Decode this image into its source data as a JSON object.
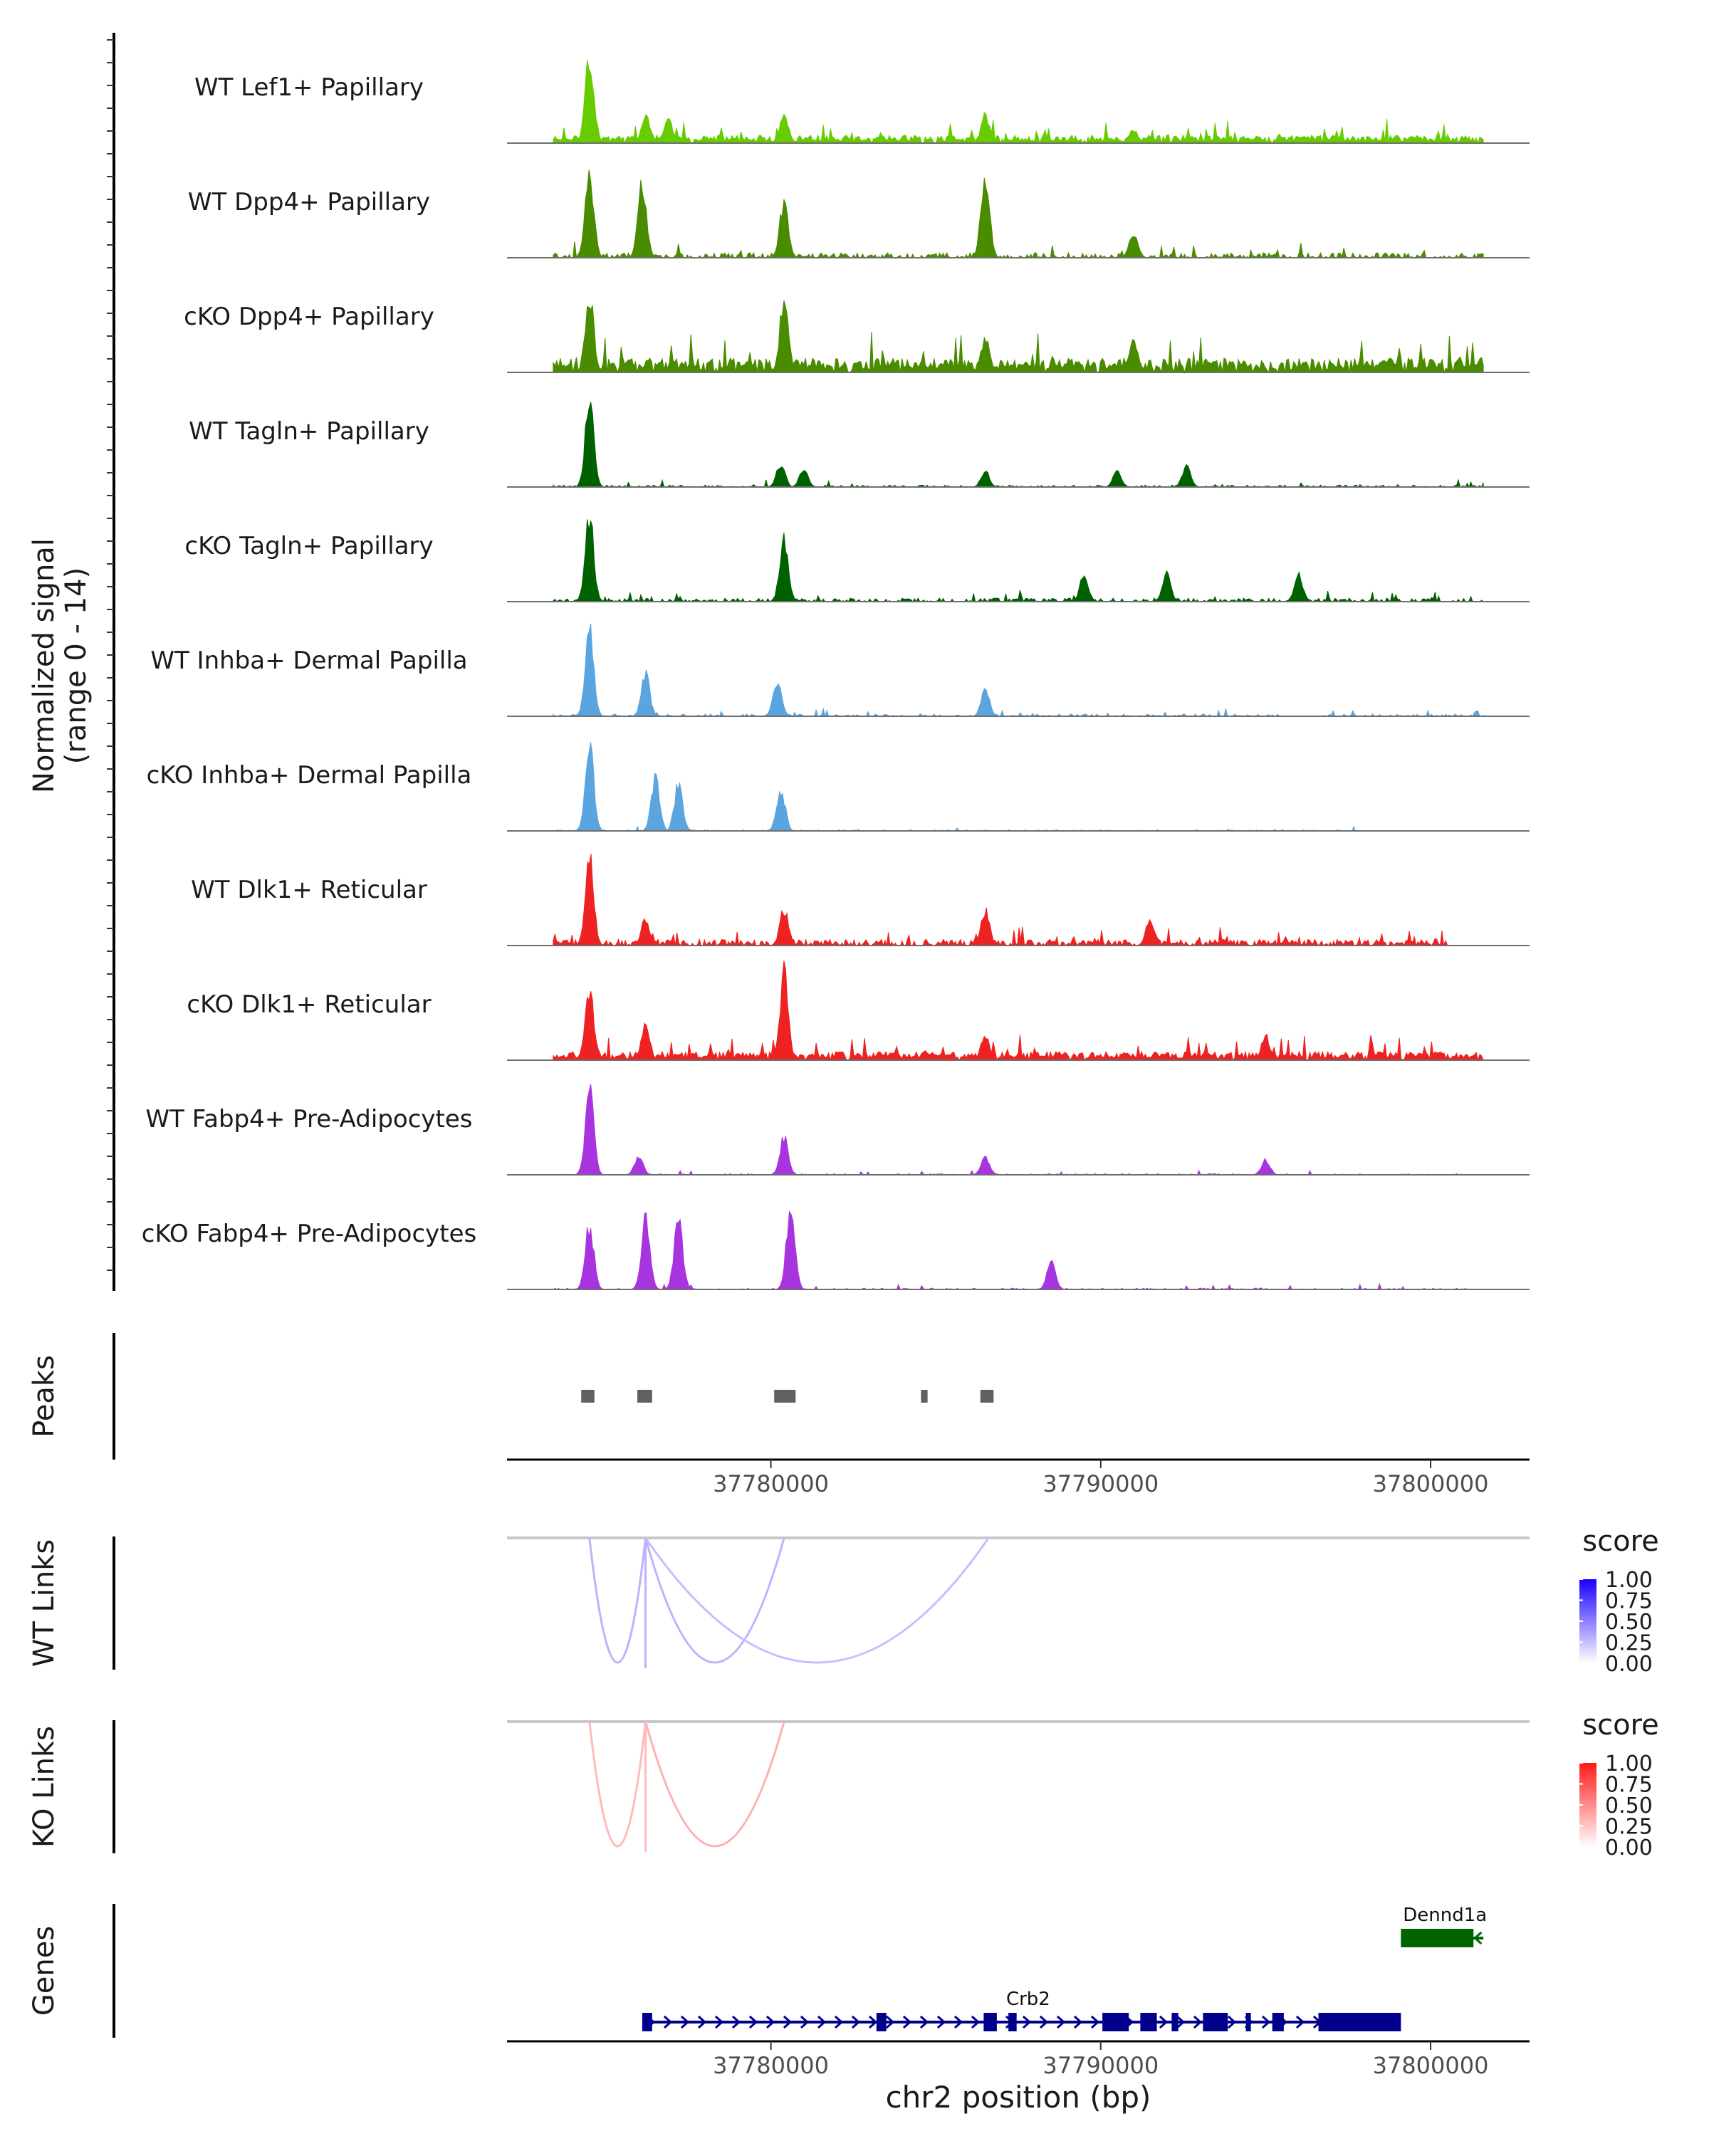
{
  "chart_data": {
    "type": "area",
    "description": "Signac-style coverage plot",
    "locus": {
      "chromosome": "chr2",
      "start": 37772000,
      "end": 37803000
    },
    "xlabel": "chr2 position (bp)",
    "x_ticks": [
      37780000,
      37790000,
      37800000
    ],
    "x_tick_labels": [
      "37780000",
      "37790000",
      "37800000"
    ],
    "coverage": {
      "ylabel_line1": "Normalized signal",
      "ylabel_line2": "(range 0 - 14)",
      "ylim": [
        0,
        14
      ],
      "tracks": [
        {
          "name": "WT Lef1+ Papillary",
          "color": "#66cc00",
          "max": 9.5,
          "peaks": [
            [
              37774500,
              9.5
            ],
            [
              37776200,
              3
            ],
            [
              37776900,
              2.5
            ],
            [
              37780400,
              3
            ],
            [
              37786500,
              3
            ],
            [
              37791000,
              1.5
            ]
          ],
          "extent": [
            37773400,
            37801600
          ],
          "baseline": 0.45,
          "density": 0.95,
          "seed": 11
        },
        {
          "name": "WT Dpp4+ Papillary",
          "color": "#4a8c00",
          "max": 8.5,
          "peaks": [
            [
              37774500,
              8.5
            ],
            [
              37776100,
              7.5
            ],
            [
              37780400,
              5.5
            ],
            [
              37786500,
              8.5
            ],
            [
              37791000,
              2.5
            ]
          ],
          "extent": [
            37773400,
            37801600
          ],
          "baseline": 0.25,
          "density": 0.55,
          "seed": 23
        },
        {
          "name": "cKO Dpp4+ Papillary",
          "color": "#4a8c00",
          "max": 6.5,
          "peaks": [
            [
              37774500,
              6
            ],
            [
              37780400,
              5.5
            ],
            [
              37786500,
              2.5
            ],
            [
              37791000,
              2.5
            ]
          ],
          "extent": [
            37773400,
            37801600
          ],
          "baseline": 0.55,
          "density": 0.9,
          "seed": 37
        },
        {
          "name": "WT Tagln+ Papillary",
          "color": "#006100",
          "max": 17,
          "peaks": [
            [
              37774500,
              17
            ],
            [
              37780300,
              4.5
            ],
            [
              37781000,
              3.5
            ],
            [
              37786500,
              3
            ],
            [
              37790500,
              3
            ],
            [
              37792600,
              4
            ]
          ],
          "extent": [
            37773400,
            37801600
          ],
          "baseline": 0.2,
          "density": 0.45,
          "seed": 41
        },
        {
          "name": "cKO Tagln+ Papillary",
          "color": "#006100",
          "max": 9.5,
          "peaks": [
            [
              37774500,
              9.5
            ],
            [
              37780400,
              7
            ],
            [
              37789500,
              3
            ],
            [
              37792000,
              3
            ],
            [
              37796000,
              3
            ]
          ],
          "extent": [
            37773400,
            37801600
          ],
          "baseline": 0.2,
          "density": 0.5,
          "seed": 53
        },
        {
          "name": "WT Inhba+ Dermal Papilla",
          "color": "#5aa4e0",
          "max": 11.5,
          "peaks": [
            [
              37774500,
              11.5
            ],
            [
              37776200,
              5.5
            ],
            [
              37780200,
              4.5
            ],
            [
              37786500,
              3.5
            ]
          ],
          "extent": [
            37773400,
            37801600
          ],
          "baseline": 0.15,
          "density": 0.4,
          "seed": 61
        },
        {
          "name": "cKO Inhba+ Dermal Papilla",
          "color": "#5aa4e0",
          "max": 13,
          "peaks": [
            [
              37774500,
              13
            ],
            [
              37776500,
              8
            ],
            [
              37777200,
              7
            ],
            [
              37780300,
              6.5
            ]
          ],
          "extent": [
            37773400,
            37798000
          ],
          "baseline": 0.1,
          "density": 0.25,
          "seed": 67
        },
        {
          "name": "WT Dlk1+ Reticular",
          "color": "#ee2222",
          "max": 9.5,
          "peaks": [
            [
              37774500,
              9.5
            ],
            [
              37776200,
              3
            ],
            [
              37780400,
              4
            ],
            [
              37786500,
              4
            ],
            [
              37791500,
              3
            ]
          ],
          "extent": [
            37773400,
            37800500
          ],
          "baseline": 0.35,
          "density": 0.7,
          "seed": 71
        },
        {
          "name": "cKO Dlk1+ Reticular",
          "color": "#ee2222",
          "max": 11,
          "peaks": [
            [
              37774500,
              9.5
            ],
            [
              37776200,
              4.5
            ],
            [
              37780400,
              11
            ],
            [
              37786500,
              3
            ],
            [
              37795000,
              3
            ]
          ],
          "extent": [
            37773400,
            37801600
          ],
          "baseline": 0.55,
          "density": 0.95,
          "seed": 79
        },
        {
          "name": "WT Fabp4+ Pre-Adipocytes",
          "color": "#a834e0",
          "max": 14,
          "peaks": [
            [
              37774500,
              14
            ],
            [
              37776000,
              3
            ],
            [
              37780400,
              6
            ],
            [
              37786500,
              3
            ],
            [
              37795000,
              2.5
            ]
          ],
          "extent": [
            37773400,
            37801600
          ],
          "baseline": 0.1,
          "density": 0.2,
          "seed": 83
        },
        {
          "name": "cKO Fabp4+ Pre-Adipocytes",
          "color": "#a834e0",
          "max": 12,
          "peaks": [
            [
              37774500,
              9
            ],
            [
              37776200,
              10
            ],
            [
              37777200,
              10
            ],
            [
              37780600,
              12
            ],
            [
              37788500,
              4
            ]
          ],
          "extent": [
            37773400,
            37801600
          ],
          "baseline": 0.1,
          "density": 0.25,
          "seed": 89
        }
      ]
    },
    "peaks_track": {
      "label": "Peaks",
      "color": "#606060",
      "regions": [
        [
          37774250,
          37774650
        ],
        [
          37775950,
          37776400
        ],
        [
          37780100,
          37780750
        ],
        [
          37784550,
          37784750
        ],
        [
          37786350,
          37786750
        ]
      ]
    },
    "links": [
      {
        "label": "WT Links",
        "palette": [
          "#ffffff",
          "#1a00ff"
        ],
        "legend_title": "score",
        "legend_ticks": [
          "1.00",
          "0.75",
          "0.50",
          "0.25",
          "0.00"
        ],
        "arcs": [
          {
            "start": 37774500,
            "end": 37776200,
            "score": 0.3
          },
          {
            "start": 37776200,
            "end": 37780400,
            "score": 0.3
          },
          {
            "start": 37776200,
            "end": 37786600,
            "score": 0.25
          },
          {
            "start": 37776150,
            "end": 37776250,
            "score": 0.3
          }
        ]
      },
      {
        "label": "KO Links",
        "palette": [
          "#ffffff",
          "#ff1a1a"
        ],
        "legend_title": "score",
        "legend_ticks": [
          "1.00",
          "0.75",
          "0.50",
          "0.25",
          "0.00"
        ],
        "arcs": [
          {
            "start": 37774500,
            "end": 37776200,
            "score": 0.3
          },
          {
            "start": 37776200,
            "end": 37780400,
            "score": 0.35
          },
          {
            "start": 37776150,
            "end": 37776250,
            "score": 0.3
          }
        ]
      }
    ],
    "genes": {
      "label": "Genes",
      "items": [
        {
          "name": "Dennd1a",
          "strand": "-",
          "color": "#006400",
          "row": 0,
          "start": 37799100,
          "end": 37801600,
          "exons": [
            [
              37799100,
              37801300
            ]
          ]
        },
        {
          "name": "Crb2",
          "strand": "+",
          "color": "#00008b",
          "row": 1,
          "start": 37776100,
          "end": 37799100,
          "exons": [
            [
              37776100,
              37776400
            ],
            [
              37783200,
              37783500
            ],
            [
              37786450,
              37786850
            ],
            [
              37787200,
              37787450
            ],
            [
              37790050,
              37790850
            ],
            [
              37791200,
              37791700
            ],
            [
              37792150,
              37792350
            ],
            [
              37793100,
              37793850
            ],
            [
              37794400,
              37794550
            ],
            [
              37795200,
              37795550
            ],
            [
              37796600,
              37799100
            ]
          ]
        }
      ]
    }
  }
}
